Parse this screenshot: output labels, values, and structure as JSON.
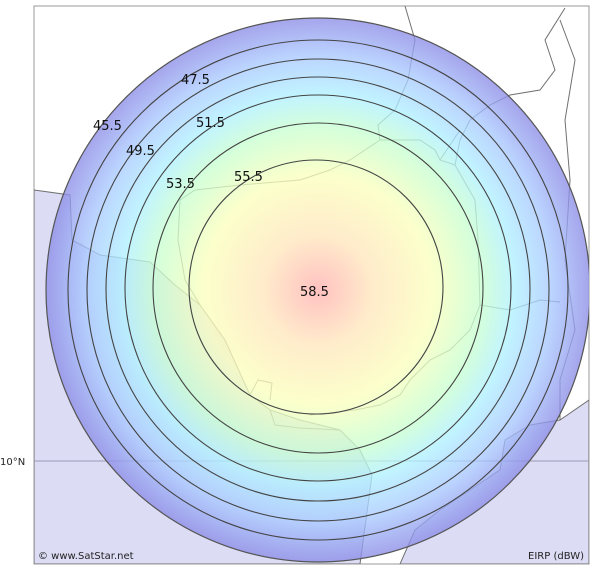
{
  "map": {
    "beam_center_label": "58.5",
    "contours": [
      {
        "value": "55.5"
      },
      {
        "value": "53.5"
      },
      {
        "value": "51.5"
      },
      {
        "value": "49.5"
      },
      {
        "value": "47.5"
      },
      {
        "value": "45.5"
      }
    ],
    "latitude_label": "10°N",
    "copyright": "© www.SatStar.net",
    "legend_unit": "EIRP (dBW)",
    "colors": {
      "land": "#ffffff",
      "sea": "#dcdcf5",
      "border": "#707070",
      "beam_peak": "#ffb4b4",
      "beam_mid": "#fbffb8",
      "beam_edge": "#9090e0"
    }
  }
}
